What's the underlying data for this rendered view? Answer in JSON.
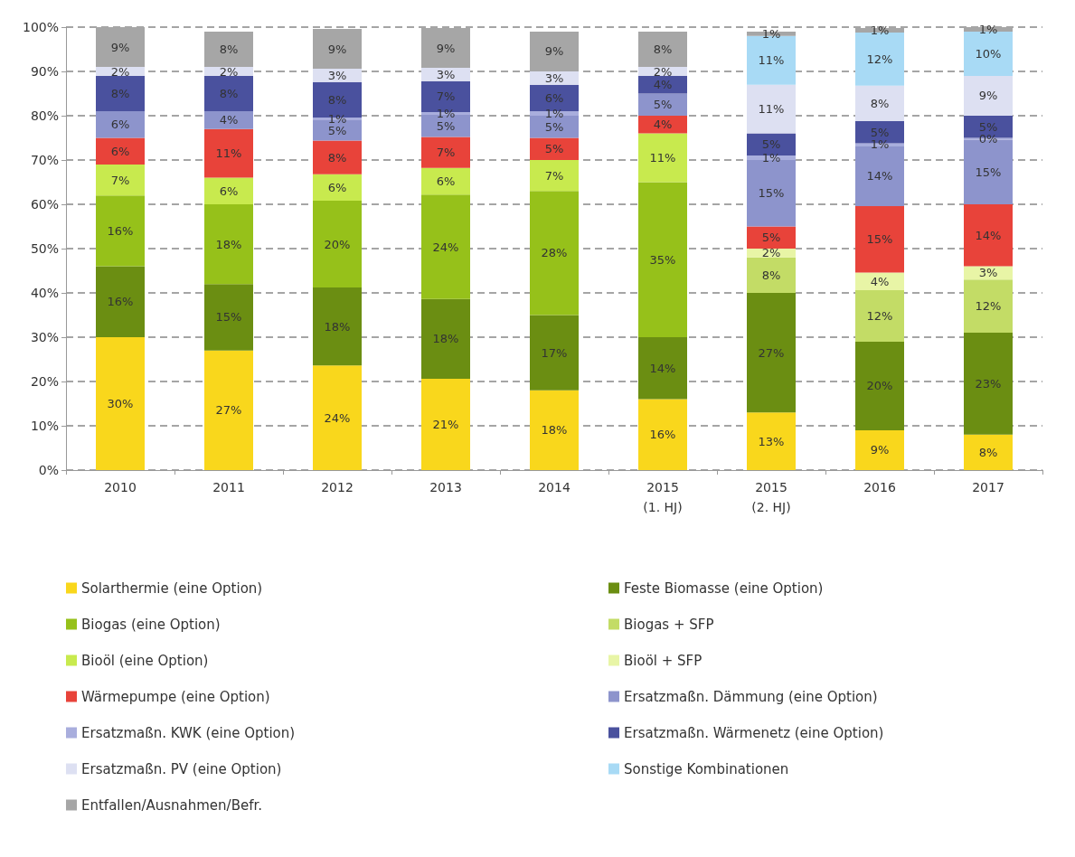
{
  "chart_data": {
    "type": "bar",
    "stacked": true,
    "categories": [
      "2010",
      "2011",
      "2012",
      "2013",
      "2014",
      "2015 (1. HJ)",
      "2015 (2. HJ)",
      "2016",
      "2017"
    ],
    "series": [
      {
        "name": "Solarthermie (eine Option)",
        "color": "#f9d71c",
        "values": [
          30,
          27,
          23.6,
          20.6,
          18,
          16,
          13,
          9,
          8
        ],
        "value_labels": [
          "30%",
          "27%",
          "24%",
          "21%",
          "18%",
          "16%",
          "13%",
          "9%",
          "8%"
        ]
      },
      {
        "name": "Feste Biomasse (eine Option)",
        "color": "#6b8e12",
        "values": [
          16,
          15,
          17.6,
          18,
          17,
          14,
          27,
          20,
          23
        ],
        "value_labels": [
          "16%",
          "15%",
          "18%",
          "18%",
          "17%",
          "14%",
          "27%",
          "20%",
          "23%"
        ]
      },
      {
        "name": "Biogas (eine Option)",
        "color": "#96c11a",
        "values": [
          16,
          18,
          19.6,
          23.6,
          28,
          35,
          null,
          null,
          null
        ],
        "value_labels": [
          "16%",
          "18%",
          "20%",
          "24%",
          "28%",
          "35%",
          null,
          null,
          null
        ]
      },
      {
        "name": "Biogas + SFP",
        "color": "#c3dc66",
        "values": [
          null,
          null,
          null,
          null,
          null,
          null,
          8,
          11.6,
          12
        ],
        "value_labels": [
          null,
          null,
          null,
          null,
          null,
          null,
          "8%",
          "12%",
          "12%"
        ]
      },
      {
        "name": "Bioöl (eine Option)",
        "color": "#c8ea4e",
        "values": [
          7,
          6,
          6,
          6,
          7,
          11,
          null,
          null,
          null
        ],
        "value_labels": [
          "7%",
          "6%",
          "6%",
          "6%",
          "7%",
          "11%",
          null,
          null,
          null
        ]
      },
      {
        "name": "Bioöl + SFP",
        "color": "#e8f5a6",
        "values": [
          null,
          null,
          null,
          null,
          null,
          null,
          2,
          4,
          3
        ],
        "value_labels": [
          null,
          null,
          null,
          null,
          null,
          null,
          "2%",
          "4%",
          "3%"
        ]
      },
      {
        "name": "Wärmepumpe (eine Option)",
        "color": "#e8433a",
        "values": [
          6,
          11,
          7.6,
          7,
          5,
          4,
          5,
          15,
          14
        ],
        "value_labels": [
          "6%",
          "11%",
          "8%",
          "7%",
          "5%",
          "4%",
          "5%",
          "15%",
          "14%"
        ]
      },
      {
        "name": "Ersatzmaßn. Dämmung (eine Option)",
        "color": "#8d94cc",
        "values": [
          6,
          4,
          4.6,
          5,
          5,
          5,
          15,
          13.6,
          14.6
        ],
        "value_labels": [
          "6%",
          "4%",
          "5%",
          "5%",
          "5%",
          "5%",
          "15%",
          "14%",
          "15%"
        ]
      },
      {
        "name": "Ersatzmaßn. KWK (eine Option)",
        "color": "#a9aedd",
        "values": [
          null,
          null,
          0.6,
          0.6,
          1,
          null,
          1,
          0.6,
          0.4
        ],
        "value_labels": [
          null,
          null,
          "1%",
          "1%",
          "1%",
          null,
          "1%",
          "1%",
          "0%"
        ]
      },
      {
        "name": "Ersatzmaßn. Wärmenetz (eine Option)",
        "color": "#4a519e",
        "values": [
          8,
          8,
          8,
          7,
          6,
          4,
          5,
          5,
          5
        ],
        "value_labels": [
          "8%",
          "8%",
          "8%",
          "7%",
          "6%",
          "4%",
          "5%",
          "5%",
          "5%"
        ]
      },
      {
        "name": "Ersatzmaßn. PV (eine Option)",
        "color": "#dde0f2",
        "values": [
          2,
          2,
          3,
          3,
          3,
          2,
          11,
          8,
          9
        ],
        "value_labels": [
          "2%",
          "2%",
          "3%",
          "3%",
          "3%",
          "2%",
          "11%",
          "8%",
          "9%"
        ]
      },
      {
        "name": "Sonstige Kombinationen",
        "color": "#a8daf5",
        "values": [
          null,
          null,
          null,
          null,
          null,
          null,
          11,
          12,
          10
        ],
        "value_labels": [
          null,
          null,
          null,
          null,
          null,
          null,
          "11%",
          "12%",
          "10%"
        ]
      },
      {
        "name": "Entfallen/Ausnahmen/Befr.",
        "color": "#a6a6a6",
        "values": [
          9,
          8,
          9,
          9,
          9,
          8,
          1,
          1,
          1
        ],
        "value_labels": [
          "9%",
          "8%",
          "9%",
          "9%",
          "9%",
          "8%",
          "1%",
          "1%",
          "1%"
        ]
      }
    ],
    "ylim": [
      0,
      100
    ],
    "yticks": [
      {
        "value": 0,
        "label": "0%"
      },
      {
        "value": 10,
        "label": "10%"
      },
      {
        "value": 20,
        "label": "20%"
      },
      {
        "value": 30,
        "label": "30%"
      },
      {
        "value": 40,
        "label": "40%"
      },
      {
        "value": 50,
        "label": "50%"
      },
      {
        "value": 60,
        "label": "60%"
      },
      {
        "value": 70,
        "label": "70%"
      },
      {
        "value": 80,
        "label": "80%"
      },
      {
        "value": 90,
        "label": "90%"
      },
      {
        "value": 100,
        "label": "100%"
      }
    ],
    "grid": "y",
    "legend": "bottom"
  }
}
